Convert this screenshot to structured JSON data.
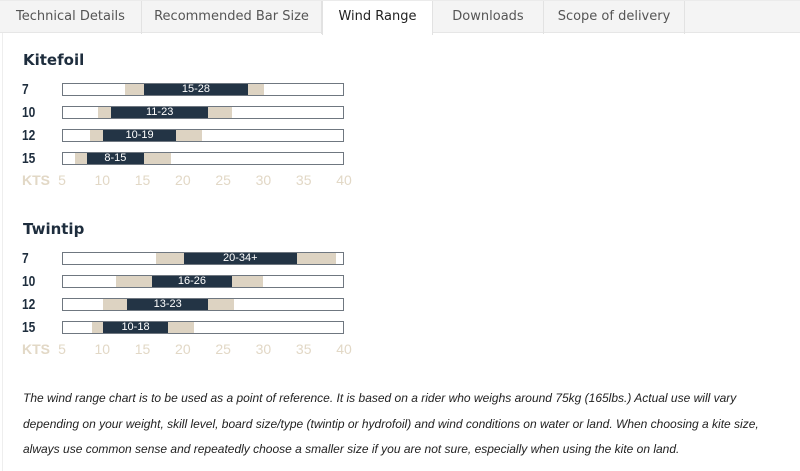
{
  "tabs": [
    {
      "label": "Technical Details",
      "active": false
    },
    {
      "label": "Recommended Bar Size",
      "active": false
    },
    {
      "label": "Wind Range",
      "active": true
    },
    {
      "label": "Downloads",
      "active": false
    },
    {
      "label": "Scope of delivery",
      "active": false
    }
  ],
  "colors": {
    "range": "#233445",
    "extended": "#ddd3c2",
    "axis": "#e2d8c6"
  },
  "chart_data": [
    {
      "type": "bar",
      "title": "Kitefoil",
      "unit": "KTS",
      "xlim": [
        5,
        40
      ],
      "ticks": [
        5,
        10,
        15,
        20,
        25,
        30,
        35,
        40
      ],
      "rows": [
        {
          "size": "7",
          "label": "15-28",
          "range": [
            15,
            28
          ],
          "extended": [
            12.7,
            30
          ]
        },
        {
          "size": "10",
          "label": "11-23",
          "range": [
            11,
            23
          ],
          "extended": [
            9.3,
            26
          ]
        },
        {
          "size": "12",
          "label": "10-19",
          "range": [
            10,
            19
          ],
          "extended": [
            8.4,
            22.2
          ]
        },
        {
          "size": "15",
          "label": "8-15",
          "range": [
            8,
            15
          ],
          "extended": [
            6.5,
            18.4
          ]
        }
      ]
    },
    {
      "type": "bar",
      "title": "Twintip",
      "unit": "KTS",
      "xlim": [
        5,
        40
      ],
      "ticks": [
        5,
        10,
        15,
        20,
        25,
        30,
        35,
        40
      ],
      "rows": [
        {
          "size": "7",
          "label": "20-34+",
          "range": [
            20,
            34
          ],
          "extended": [
            16.5,
            38.9
          ]
        },
        {
          "size": "10",
          "label": "16-26",
          "range": [
            16,
            26
          ],
          "extended": [
            11.6,
            29.8
          ]
        },
        {
          "size": "12",
          "label": "13-23",
          "range": [
            13,
            23
          ],
          "extended": [
            10,
            26.2
          ]
        },
        {
          "size": "15",
          "label": "10-18",
          "range": [
            10,
            18
          ],
          "extended": [
            8.6,
            21.2
          ]
        }
      ]
    }
  ],
  "note": "The wind range chart is to be used as a point of reference. It is based on a rider who weighs around 75kg (165lbs.) Actual use will vary depending on your weight, skill level, board size/type (twintip or hydrofoil) and wind conditions on water or land. When choosing a kite size, always use common sense and repeatedly choose a smaller size if you are not sure, especially when using the kite on land."
}
